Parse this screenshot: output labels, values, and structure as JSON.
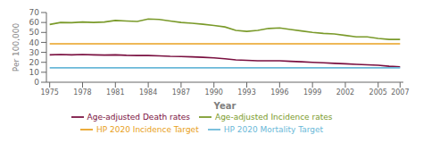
{
  "chart_data": {
    "type": "line",
    "xlabel": "Year",
    "ylabel": "Per 100,000",
    "x": [
      1975,
      1976,
      1977,
      1978,
      1979,
      1980,
      1981,
      1982,
      1983,
      1984,
      1985,
      1986,
      1987,
      1988,
      1989,
      1990,
      1991,
      1992,
      1993,
      1994,
      1995,
      1996,
      1997,
      1998,
      1999,
      2000,
      2001,
      2002,
      2003,
      2004,
      2005,
      2006,
      2007
    ],
    "series": [
      {
        "name": "Age-adjusted Incidence rates",
        "color": "#7a9a2a",
        "values": [
          58.0,
          60.0,
          59.8,
          60.5,
          60.0,
          60.5,
          62.0,
          61.5,
          61.0,
          63.5,
          63.0,
          61.5,
          60.0,
          59.2,
          58.2,
          57.0,
          55.5,
          52.0,
          51.0,
          52.0,
          54.0,
          54.5,
          53.0,
          51.5,
          50.0,
          49.0,
          48.5,
          47.0,
          45.5,
          45.5,
          44.0,
          43.0,
          43.0
        ]
      },
      {
        "name": "HP 2020 Incidence Target",
        "color": "#e8a020",
        "values": [
          38.6,
          38.6,
          38.6,
          38.6,
          38.6,
          38.6,
          38.6,
          38.6,
          38.6,
          38.6,
          38.6,
          38.6,
          38.6,
          38.6,
          38.6,
          38.6,
          38.6,
          38.6,
          38.6,
          38.6,
          38.6,
          38.6,
          38.6,
          38.6,
          38.6,
          38.6,
          38.6,
          38.6,
          38.6,
          38.6,
          38.6,
          38.6,
          38.6
        ]
      },
      {
        "name": "Age-adjusted Death rates",
        "color": "#7a1040",
        "values": [
          27.5,
          27.8,
          27.5,
          27.8,
          27.5,
          27.3,
          27.5,
          27.0,
          26.8,
          26.8,
          26.5,
          26.0,
          25.8,
          25.5,
          25.0,
          24.5,
          23.5,
          22.5,
          22.0,
          21.5,
          21.5,
          21.5,
          21.0,
          20.5,
          20.0,
          19.5,
          19.0,
          18.5,
          18.0,
          17.5,
          17.0,
          16.0,
          15.5
        ]
      },
      {
        "name": "HP 2020 Mortality Target",
        "color": "#6ab8d8",
        "values": [
          14.5,
          14.5,
          14.5,
          14.5,
          14.5,
          14.5,
          14.5,
          14.5,
          14.5,
          14.5,
          14.5,
          14.5,
          14.5,
          14.5,
          14.5,
          14.5,
          14.5,
          14.5,
          14.5,
          14.5,
          14.5,
          14.5,
          14.5,
          14.5,
          14.5,
          14.5,
          14.5,
          14.5,
          14.5,
          14.5,
          14.5,
          14.5,
          14.5
        ]
      }
    ],
    "xlim": [
      1974.7,
      2007.3
    ],
    "xticks": [
      1975,
      1978,
      1981,
      1984,
      1987,
      1990,
      1993,
      1996,
      1999,
      2002,
      2005,
      2007
    ],
    "ylim": [
      0,
      70
    ],
    "yticks": [
      0,
      10,
      20,
      30,
      40,
      50,
      60,
      70
    ],
    "grid": false,
    "legend": "bottom"
  }
}
